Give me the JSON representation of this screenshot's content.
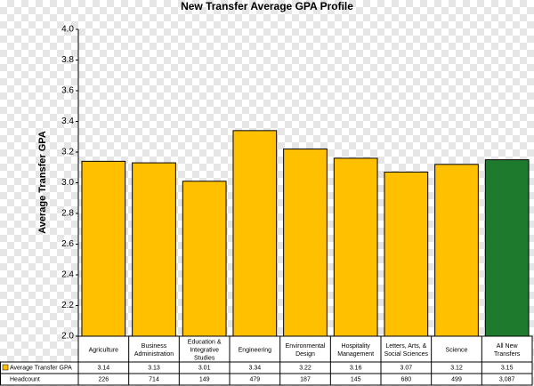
{
  "chart_data": {
    "type": "bar",
    "title": "New Transfer Average GPA Profile",
    "y_label": "Average Transfer GPA",
    "categories": [
      "Agriculture",
      "Business\nAdministration",
      "Education &\nIntegrative\nStudies",
      "Engineering",
      "Environmental\nDesign",
      "Hospitality\nManagement",
      "Letters, Arts, &\nSocial Sciences",
      "Science",
      "All New\nTransfers"
    ],
    "series": [
      {
        "name": "Average Transfer GPA",
        "color": "#FFC000",
        "colors": [
          "#FFC000",
          "#FFC000",
          "#FFC000",
          "#FFC000",
          "#FFC000",
          "#FFC000",
          "#FFC000",
          "#FFC000",
          "#1E7B2E"
        ],
        "values": [
          3.14,
          3.13,
          3.01,
          3.34,
          3.22,
          3.16,
          3.07,
          3.12,
          3.15
        ]
      }
    ],
    "headcount": {
      "name": "Headcount",
      "values": [
        226,
        714,
        149,
        479,
        187,
        145,
        680,
        499,
        3087
      ],
      "value_labels": [
        "226",
        "714",
        "149",
        "479",
        "187",
        "145",
        "680",
        "499",
        "3,087"
      ]
    },
    "ylim": [
      2.0,
      4.0
    ],
    "yticks": [
      {
        "value": 2,
        "label": "2.0"
      },
      {
        "value": 2.2,
        "label": "2.2"
      },
      {
        "value": 2.4,
        "label": "2.4"
      },
      {
        "value": 2.6,
        "label": "2.6"
      },
      {
        "value": 2.8,
        "label": "2.8"
      },
      {
        "value": 3,
        "label": "3.0"
      },
      {
        "value": 3.2,
        "label": "3.2"
      },
      {
        "value": 3.4,
        "label": "3.4"
      },
      {
        "value": 3.6,
        "label": "3.6"
      },
      {
        "value": 3.8,
        "label": "3.8"
      },
      {
        "value": 4,
        "label": "4.0"
      }
    ],
    "grid": false
  }
}
